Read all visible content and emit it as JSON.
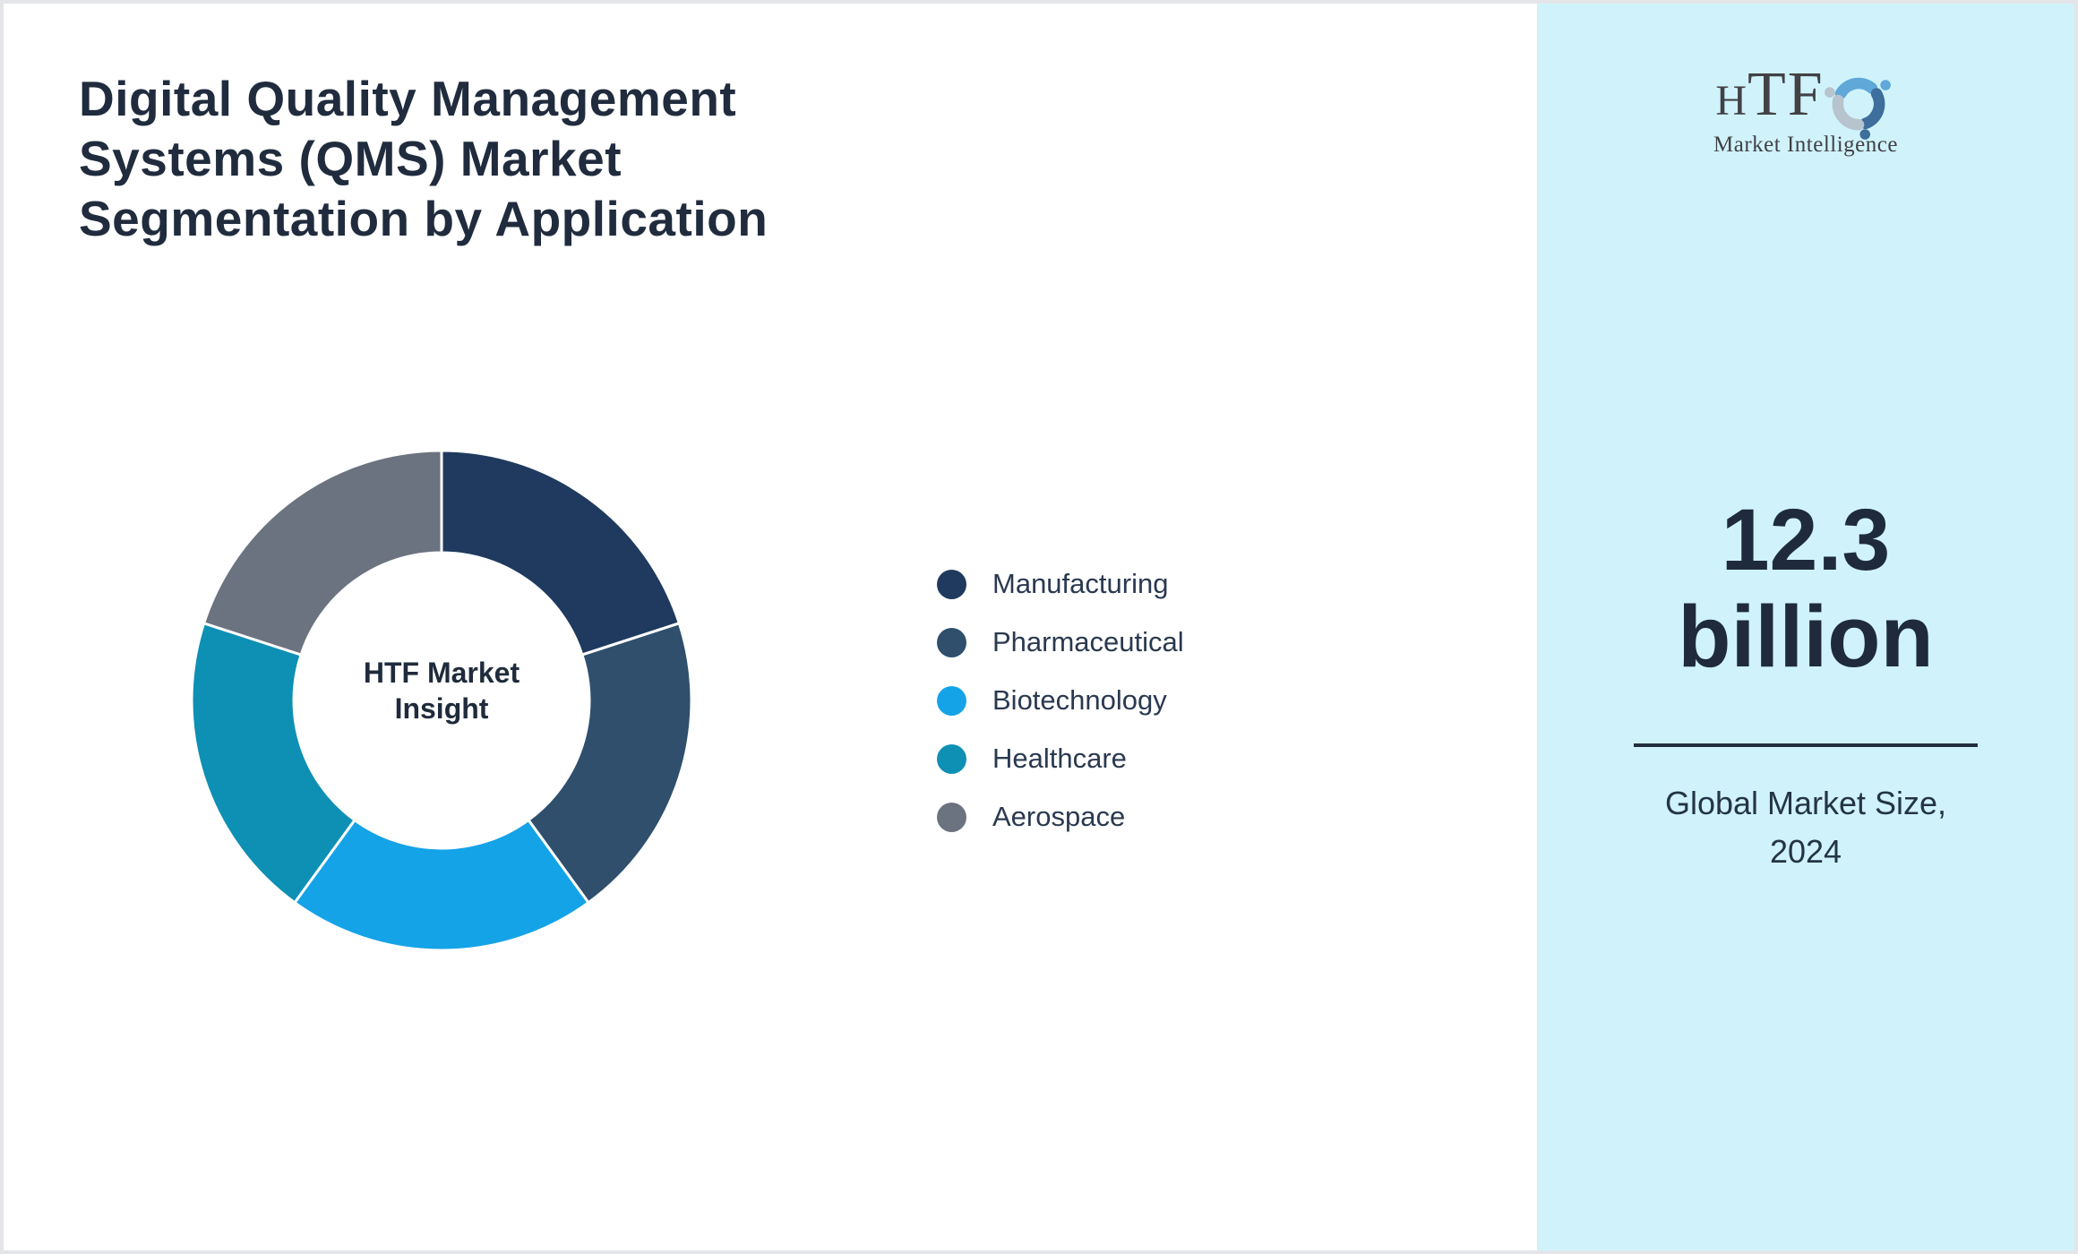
{
  "title": {
    "full": "Digital Quality Management Systems (QMS) Market Segmentation by Application",
    "lines": [
      "Digital Quality Management",
      "Systems (QMS) Market",
      "Segmentation by Application"
    ]
  },
  "donut": {
    "center_lines": [
      "HTF Market",
      "Insight"
    ]
  },
  "logo": {
    "brand_h": "H",
    "brand_rest": "TF",
    "tagline": "Market Intelligence",
    "swirl_icon": "htf-dolphin-swirl-icon",
    "swirl_colors": [
      "#5fa8d8",
      "#3d6e9c",
      "#b7c3cd"
    ]
  },
  "sidebar": {
    "stat_lines": [
      "12.3",
      "billion"
    ],
    "caption_lines": [
      "Global Market Size,",
      "2024"
    ],
    "background_color": "#d0f3fb"
  },
  "colors": {
    "title_text": "#202c3e",
    "legend_text": "#2a3950",
    "divider": "#222e3e",
    "frame_border": "#e3e5e9"
  },
  "chart_data": {
    "type": "pie",
    "subtype": "donut",
    "title": "Digital Quality Management Systems (QMS) Market Segmentation by Application",
    "center_label": "HTF Market Insight",
    "categories": [
      "Manufacturing",
      "Pharmaceutical",
      "Biotechnology",
      "Healthcare",
      "Aerospace"
    ],
    "values": [
      20,
      20,
      20,
      20,
      20
    ],
    "values_unit": "%",
    "colors": [
      "#1f3a5e",
      "#2f4f6d",
      "#15a3e8",
      "#0d90b3",
      "#6b7380"
    ],
    "start_angle_deg": 0,
    "direction": "clockwise",
    "inner_radius_ratio": 0.59,
    "legend_position": "right",
    "annotation": {
      "value": "12.3 billion",
      "label": "Global Market Size, 2024"
    }
  }
}
